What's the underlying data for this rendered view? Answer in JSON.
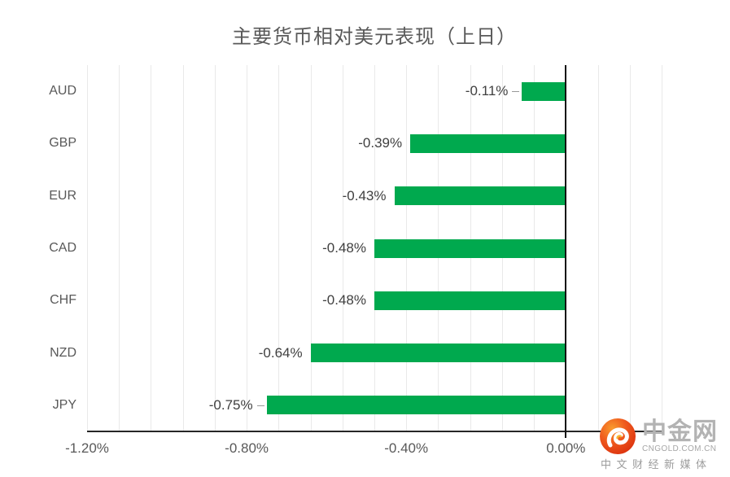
{
  "title": "主要货币相对美元表现（上日）",
  "chart_data": {
    "type": "bar",
    "orientation": "horizontal",
    "title": "主要货币相对美元表现（上日）",
    "categories": [
      "AUD",
      "GBP",
      "EUR",
      "CAD",
      "CHF",
      "NZD",
      "JPY"
    ],
    "values": [
      -0.11,
      -0.39,
      -0.43,
      -0.48,
      -0.48,
      -0.64,
      -0.75
    ],
    "value_labels": [
      "-0.11%",
      "-0.39%",
      "-0.43%",
      "-0.48%",
      "-0.48%",
      "-0.64%",
      "-0.75%"
    ],
    "leader_line_rows": [
      0,
      6
    ],
    "x_ticks": [
      {
        "label": "-1.20%",
        "value": -1.2
      },
      {
        "label": "-0.80%",
        "value": -0.8
      },
      {
        "label": "-0.40%",
        "value": -0.4
      },
      {
        "label": "0.00%",
        "value": 0
      }
    ],
    "xlim": [
      -1.2,
      0.24
    ],
    "grid_step": 0.08,
    "grid": true,
    "legend": false,
    "bar_color": "#00a94e",
    "grid_color": "#e9e9e9",
    "axis_color": "#262626",
    "zero_axis_color": "#111111",
    "value_label_color": "#404040",
    "tick_label_color": "#595959"
  },
  "watermark": {
    "brand": "中金网",
    "domain": "CNGOLD.COM.CN",
    "tagline": "中文财经新媒体"
  }
}
